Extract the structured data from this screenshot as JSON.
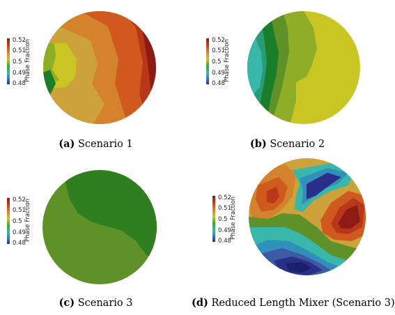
{
  "colorbar": {
    "title": "Phase Fraction",
    "ticks": [
      "0.52",
      "0.51",
      "0.5",
      "0.49",
      "0.48"
    ]
  },
  "palette": {
    "c1": "#8e1a14",
    "c2": "#b8361a",
    "c3": "#d0591e",
    "c4": "#d4822c",
    "c5": "#cea23a",
    "c6": "#c9c624",
    "c7": "#8fad27",
    "c8": "#5e9228",
    "c9": "#1a7d2a",
    "c10": "#2a9b74",
    "c11": "#38b7aa",
    "c12": "#3090b9",
    "c13": "#3f5aa5",
    "c14": "#2a2f8a",
    "c15": "#1a1f6e"
  },
  "panels": [
    {
      "letter": "(a)",
      "caption": " Scenario 1"
    },
    {
      "letter": "(b)",
      "caption": " Scenario 2"
    },
    {
      "letter": "(c)",
      "caption": " Scenario 3"
    },
    {
      "letter": "(d)",
      "caption": " Reduced Length Mixer (Scenario 3)"
    }
  ]
}
